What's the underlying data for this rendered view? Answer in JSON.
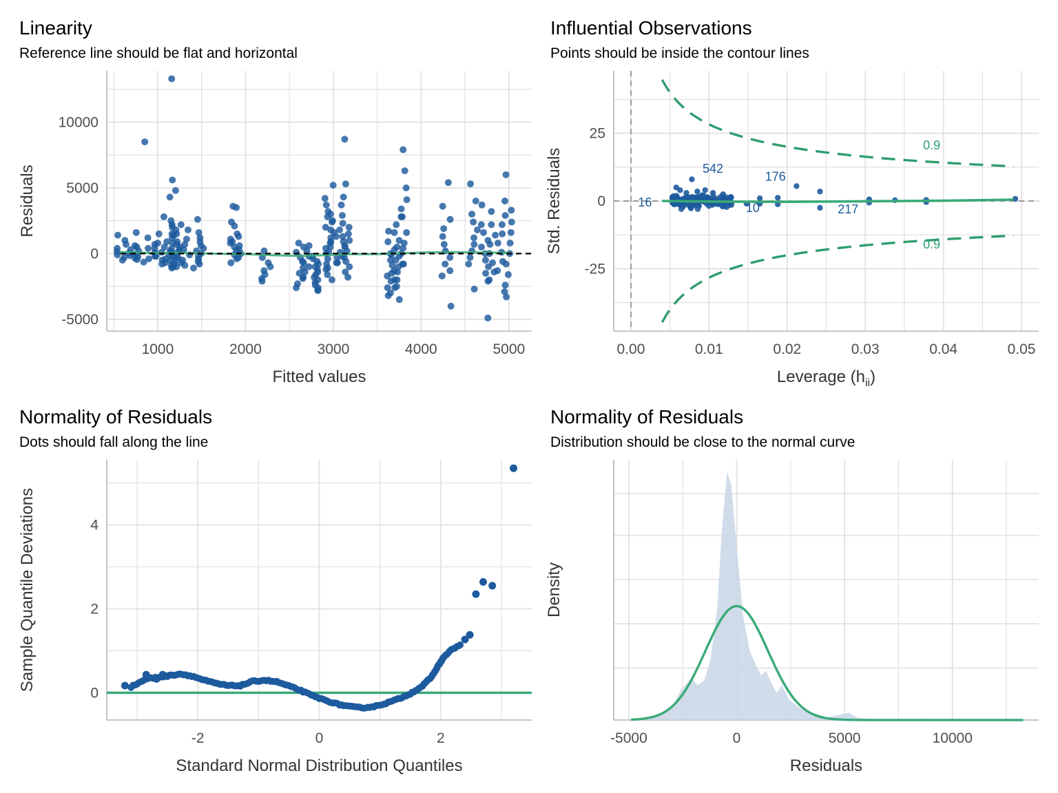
{
  "colors": {
    "points": "#1d5a9e",
    "line": "#3aaa78",
    "contour": "#2e9d6e",
    "grid": "#e1e1e1",
    "density_fill": "#c8d6e6"
  },
  "chart_data": [
    {
      "id": "linearity",
      "type": "scatter",
      "title": "Linearity",
      "subtitle": "Reference line should be flat and horizontal",
      "xlabel": "Fitted values",
      "ylabel": "Residuals",
      "xlim": [
        420,
        5260
      ],
      "ylim": [
        -5900,
        13900
      ],
      "xticks": [
        1000,
        2000,
        3000,
        4000,
        5000
      ],
      "yticks": [
        -5000,
        0,
        5000,
        10000
      ],
      "reference_line_y": 0,
      "groups": [
        {
          "x": 590,
          "y": [
            1400,
            1000,
            700,
            400,
            150,
            -100,
            -300,
            -500
          ]
        },
        {
          "x": 710,
          "y": [
            1600,
            600,
            300,
            50,
            -150,
            -350
          ]
        },
        {
          "x": 800,
          "y": [
            8500,
            500,
            200,
            -50,
            -250,
            -450,
            -650
          ]
        },
        {
          "x": 920,
          "y": [
            1200,
            700,
            400,
            100,
            -200,
            -400
          ]
        },
        {
          "x": 1000,
          "y": [
            1500,
            800,
            400,
            100,
            -200,
            -500,
            -800
          ]
        },
        {
          "x": 1120,
          "y": [
            5600,
            2800,
            2000,
            1500,
            900,
            500,
            200,
            -100,
            -400,
            -700,
            -1000
          ]
        },
        {
          "x": 1160,
          "y": [
            4300,
            2200,
            1400,
            800,
            400,
            100,
            -200,
            -500,
            -800
          ]
        },
        {
          "x": 1200,
          "y": [
            13300,
            4800,
            2500,
            1800,
            1200,
            700,
            300,
            0,
            -300,
            -600,
            -900,
            -1100
          ]
        },
        {
          "x": 1260,
          "y": [
            2200,
            1500,
            900,
            500,
            100,
            -300,
            -700,
            -1000
          ]
        },
        {
          "x": 1320,
          "y": [
            1800,
            1100,
            700,
            300,
            -100,
            -500,
            -900
          ]
        },
        {
          "x": 1440,
          "y": [
            2600,
            1200,
            600,
            200,
            -200,
            -600,
            -1100
          ]
        },
        {
          "x": 1490,
          "y": [
            1600,
            900,
            400,
            0,
            -400,
            -800
          ]
        },
        {
          "x": 1880,
          "y": [
            3600,
            3500,
            2400,
            2100,
            1500,
            1100,
            800,
            500,
            200,
            -100,
            -400,
            -700
          ]
        },
        {
          "x": 1900,
          "y": [
            1300,
            900,
            600,
            300,
            0,
            -300
          ]
        },
        {
          "x": 2230,
          "y": [
            200,
            -300,
            -700,
            -1000,
            -1300,
            -1600,
            -1900,
            -2100
          ]
        },
        {
          "x": 2630,
          "y": [
            800,
            500,
            100,
            -300,
            -700,
            -1100,
            -1500,
            -1900,
            -2300,
            -2600
          ]
        },
        {
          "x": 2680,
          "y": [
            600,
            200,
            -200,
            -600,
            -1000,
            -1400,
            -1800
          ]
        },
        {
          "x": 2780,
          "y": [
            -200,
            -600,
            -1000,
            -1400,
            -1800,
            -2200,
            -2600,
            -2800
          ]
        },
        {
          "x": 2800,
          "y": [
            -400,
            -800,
            -1200,
            -1600,
            -2000,
            -2400,
            -2800
          ]
        },
        {
          "x": 2960,
          "y": [
            5200,
            4200,
            3700,
            3200,
            2800,
            2400,
            2000,
            1600,
            1200,
            800,
            400,
            0,
            -400,
            -800,
            -1200,
            -1600,
            -2000
          ]
        },
        {
          "x": 2990,
          "y": [
            3000,
            2500,
            1800,
            1300,
            900,
            500,
            100,
            -300,
            -700,
            -1100
          ]
        },
        {
          "x": 3100,
          "y": [
            8700,
            5300,
            4300,
            3700,
            2900,
            2300,
            1800,
            1300,
            900,
            500,
            100,
            -300,
            -700
          ]
        },
        {
          "x": 3140,
          "y": [
            2000,
            1500,
            1000,
            600,
            200,
            -200,
            -600,
            -1000,
            -1400,
            -1800
          ]
        },
        {
          "x": 3650,
          "y": [
            1700,
            900,
            300,
            -100,
            -500,
            -900,
            -1300,
            -1700,
            -2100,
            -2600,
            -3200
          ]
        },
        {
          "x": 3700,
          "y": [
            500,
            0,
            -500,
            -1000,
            -1500,
            -2000,
            -2500,
            -3000,
            -3500
          ]
        },
        {
          "x": 3750,
          "y": [
            3400,
            2800,
            2200,
            1600,
            1000,
            400,
            -200,
            -800,
            -1400,
            -2000,
            -2600
          ]
        },
        {
          "x": 3810,
          "y": [
            7900,
            6300,
            5000,
            4100,
            2800,
            1600,
            800,
            0,
            -800
          ]
        },
        {
          "x": 4290,
          "y": [
            5400,
            3600,
            2600,
            1900,
            1300,
            700,
            200,
            -300,
            -800,
            -1300,
            -1700,
            -4000
          ]
        },
        {
          "x": 4590,
          "y": [
            5300,
            4000,
            3000,
            2400,
            1800,
            1200,
            700,
            200,
            -300,
            -800,
            -2700
          ]
        },
        {
          "x": 4740,
          "y": [
            3700,
            2200,
            1600,
            1000,
            500,
            0,
            -500,
            -1000,
            -1500,
            -2000
          ]
        },
        {
          "x": 4810,
          "y": [
            3200,
            2200,
            1400,
            700,
            0,
            -700,
            -1400,
            -2100,
            -4900
          ]
        },
        {
          "x": 4920,
          "y": [
            2900,
            2200,
            1500,
            800,
            100,
            -600,
            -1300
          ]
        },
        {
          "x": 5000,
          "y": [
            6000,
            4000,
            3300,
            2400,
            1600,
            800,
            0,
            -800,
            -1600,
            -2400,
            -2900,
            -3300
          ]
        }
      ],
      "smooth": [
        [
          570,
          120
        ],
        [
          800,
          80
        ],
        [
          1000,
          20
        ],
        [
          1200,
          60
        ],
        [
          1400,
          30
        ],
        [
          1700,
          -20
        ],
        [
          2000,
          -40
        ],
        [
          2300,
          -120
        ],
        [
          2600,
          -180
        ],
        [
          2900,
          -120
        ],
        [
          3200,
          -40
        ],
        [
          3500,
          -40
        ],
        [
          3800,
          30
        ],
        [
          4100,
          90
        ],
        [
          4400,
          110
        ],
        [
          4700,
          80
        ],
        [
          5000,
          60
        ]
      ]
    },
    {
      "id": "influential",
      "type": "scatter",
      "title": "Influential Observations",
      "subtitle": "Points should be inside the contour lines",
      "xlabel": "Leverage (h",
      "xlabel_sub": "ii",
      "xlabel_end": ")",
      "ylabel": "Std. Residuals",
      "xlim": [
        -0.0022,
        0.0522
      ],
      "ylim": [
        -48,
        48
      ],
      "xticks": [
        0.0,
        0.01,
        0.02,
        0.03,
        0.04,
        0.05
      ],
      "xtick_labels": [
        "0.00",
        "0.01",
        "0.02",
        "0.03",
        "0.04",
        "0.05"
      ],
      "yticks": [
        -25,
        0,
        25
      ],
      "contour_level": "0.9",
      "contour_labels": [
        {
          "text": "0.9",
          "x": 0.0385,
          "y": 19
        },
        {
          "text": "0.9",
          "x": 0.0385,
          "y": -17.5
        }
      ],
      "point_labels": [
        {
          "text": "542",
          "x": 0.0105,
          "y": 12
        },
        {
          "text": "176",
          "x": 0.0185,
          "y": 9
        },
        {
          "text": "16",
          "x": 0.0018,
          "y": -0.5
        },
        {
          "text": "10",
          "x": 0.0156,
          "y": -2.5
        },
        {
          "text": "217",
          "x": 0.0278,
          "y": -3
        }
      ],
      "points": [
        [
          0.0078,
          8
        ],
        [
          0.0212,
          5.5
        ],
        [
          0.0242,
          3.5
        ],
        [
          0.0242,
          -2.5
        ],
        [
          0.0305,
          0.6
        ],
        [
          0.0305,
          -0.6
        ],
        [
          0.0338,
          0.3
        ],
        [
          0.0378,
          0.4
        ],
        [
          0.0378,
          -0.4
        ],
        [
          0.0492,
          0.8
        ],
        [
          0.0188,
          1.2
        ],
        [
          0.0188,
          -1.2
        ],
        [
          0.0165,
          1.0
        ],
        [
          0.0165,
          -1.0
        ],
        [
          0.0128,
          1.5
        ],
        [
          0.0148,
          -1.0
        ],
        [
          0.0058,
          5
        ],
        [
          0.0063,
          4
        ],
        [
          0.0071,
          3
        ],
        [
          0.0085,
          3.5
        ],
        [
          0.0095,
          4
        ],
        [
          0.0105,
          3
        ],
        [
          0.0118,
          2.5
        ]
      ],
      "cluster": {
        "x_from": 0.0053,
        "x_to": 0.013,
        "count": 220,
        "y_sd": 1.1
      },
      "smooth": [
        [
          0.004,
          0
        ],
        [
          0.01,
          -0.2
        ],
        [
          0.02,
          -0.3
        ],
        [
          0.03,
          -0.1
        ],
        [
          0.04,
          0.1
        ],
        [
          0.049,
          0.5
        ]
      ]
    },
    {
      "id": "qq",
      "type": "scatter",
      "title": "Normality of Residuals",
      "subtitle": "Dots should fall along the line",
      "xlabel": "Standard Normal Distribution Quantiles",
      "ylabel": "Sample Quantile Deviations",
      "xlim": [
        -3.5,
        3.5
      ],
      "ylim": [
        -0.65,
        5.55
      ],
      "xticks": [
        -2,
        0,
        2
      ],
      "yticks": [
        0,
        2,
        4
      ],
      "reference_line_y": 0,
      "curve": [
        [
          -3.1,
          0.14
        ],
        [
          -2.85,
          0.33
        ],
        [
          -2.7,
          0.36
        ],
        [
          -2.5,
          0.4
        ],
        [
          -2.3,
          0.45
        ],
        [
          -2.1,
          0.4
        ],
        [
          -1.9,
          0.3
        ],
        [
          -1.7,
          0.22
        ],
        [
          -1.5,
          0.17
        ],
        [
          -1.3,
          0.17
        ],
        [
          -1.1,
          0.27
        ],
        [
          -0.9,
          0.3
        ],
        [
          -0.7,
          0.26
        ],
        [
          -0.5,
          0.16
        ],
        [
          -0.3,
          0.05
        ],
        [
          -0.1,
          -0.08
        ],
        [
          0.1,
          -0.18
        ],
        [
          0.3,
          -0.27
        ],
        [
          0.5,
          -0.33
        ],
        [
          0.7,
          -0.36
        ],
        [
          0.9,
          -0.33
        ],
        [
          1.1,
          -0.25
        ],
        [
          1.3,
          -0.15
        ],
        [
          1.5,
          -0.02
        ],
        [
          1.7,
          0.16
        ],
        [
          1.85,
          0.38
        ],
        [
          1.95,
          0.62
        ],
        [
          2.05,
          0.85
        ],
        [
          2.2,
          1.05
        ],
        [
          2.35,
          1.15
        ]
      ],
      "extreme_points": [
        [
          -3.2,
          0.17
        ],
        [
          -2.85,
          0.43
        ],
        [
          -2.68,
          0.33
        ],
        [
          -2.58,
          0.43
        ],
        [
          2.4,
          1.27
        ],
        [
          2.48,
          1.38
        ],
        [
          2.58,
          2.35
        ],
        [
          2.7,
          2.64
        ],
        [
          2.85,
          2.55
        ],
        [
          3.2,
          5.35
        ]
      ]
    },
    {
      "id": "density",
      "type": "area",
      "title": "Normality of Residuals",
      "subtitle": "Distribution should be close to the normal curve",
      "xlabel": "Residuals",
      "ylabel": "Density",
      "xlim": [
        -5700,
        14000
      ],
      "ylim": [
        0,
        1.05
      ],
      "xticks": [
        -5000,
        0,
        5000,
        10000
      ],
      "empirical_density": [
        [
          -4900,
          0.0
        ],
        [
          -4000,
          0.01
        ],
        [
          -3000,
          0.05
        ],
        [
          -2600,
          0.12
        ],
        [
          -2100,
          0.17
        ],
        [
          -1800,
          0.14
        ],
        [
          -1500,
          0.16
        ],
        [
          -1200,
          0.25
        ],
        [
          -900,
          0.45
        ],
        [
          -700,
          0.75
        ],
        [
          -450,
          1.0
        ],
        [
          -250,
          0.95
        ],
        [
          0,
          0.7
        ],
        [
          300,
          0.42
        ],
        [
          600,
          0.28
        ],
        [
          900,
          0.22
        ],
        [
          1150,
          0.18
        ],
        [
          1350,
          0.2
        ],
        [
          1600,
          0.15
        ],
        [
          1850,
          0.11
        ],
        [
          2100,
          0.14
        ],
        [
          2450,
          0.08
        ],
        [
          2900,
          0.05
        ],
        [
          3500,
          0.03
        ],
        [
          4200,
          0.01
        ],
        [
          5200,
          0.03
        ],
        [
          5600,
          0.01
        ],
        [
          6500,
          0.0
        ],
        [
          8600,
          0.005
        ],
        [
          10000,
          0.0
        ],
        [
          13300,
          0.0
        ]
      ],
      "normal_curve": {
        "mean": 0,
        "sd": 1450,
        "peak": 0.46,
        "x_from": -4900,
        "x_to": 13300
      }
    }
  ]
}
